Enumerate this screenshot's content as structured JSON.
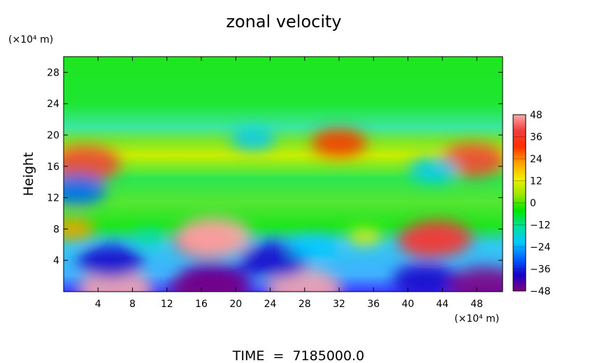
{
  "chart_data": {
    "type": "heatmap",
    "title": "zonal velocity",
    "ylabel": "Height",
    "y_unit_label": "(×10⁴ m)",
    "x_unit_label": "(×10⁴ m)",
    "footer": "TIME  =  7185000.0",
    "xlim": [
      0,
      51
    ],
    "ylim": [
      0,
      30
    ],
    "x_ticks": [
      4,
      8,
      12,
      16,
      20,
      24,
      28,
      32,
      36,
      40,
      44,
      48
    ],
    "y_ticks": [
      4,
      8,
      12,
      16,
      20,
      24,
      28
    ],
    "colorbar": {
      "min": -48,
      "max": 48,
      "ticks": [
        48,
        36,
        24,
        12,
        0,
        -12,
        -24,
        -36,
        -48
      ],
      "colormap": [
        "#800080",
        "#1a00c8",
        "#0060ff",
        "#00c8ff",
        "#00e0a0",
        "#00e600",
        "#9be600",
        "#f0f000",
        "#ffa000",
        "#ff3000",
        "#f03c3c",
        "#ffaaaa"
      ]
    },
    "features": [
      {
        "x": 16.5,
        "y": 6.5,
        "value": 36
      },
      {
        "x": 17.5,
        "y": 7.0,
        "value": 44
      },
      {
        "x": 42.5,
        "y": 6.5,
        "value": 36
      },
      {
        "x": 43.5,
        "y": 6.8,
        "value": 40
      },
      {
        "x": 6.0,
        "y": 0.3,
        "value": 44
      },
      {
        "x": 28.0,
        "y": 0.3,
        "value": 44
      },
      {
        "x": 5.5,
        "y": 3.8,
        "value": -36
      },
      {
        "x": 24.5,
        "y": 4.0,
        "value": -40
      },
      {
        "x": 29.0,
        "y": 5.5,
        "value": -22
      },
      {
        "x": 17.5,
        "y": 1.5,
        "value": -40
      },
      {
        "x": 17.0,
        "y": 0.4,
        "value": -48
      },
      {
        "x": 42.0,
        "y": 1.5,
        "value": -36
      },
      {
        "x": 49.0,
        "y": 0.7,
        "value": -44
      },
      {
        "x": 2.5,
        "y": 16.3,
        "value": 40
      },
      {
        "x": 47.5,
        "y": 16.8,
        "value": 36
      },
      {
        "x": 1.5,
        "y": 13.0,
        "value": -32
      },
      {
        "x": 43.0,
        "y": 15.5,
        "value": -24
      },
      {
        "x": 32.0,
        "y": 19.0,
        "value": 28
      },
      {
        "x": 22.0,
        "y": 19.5,
        "value": -20
      },
      {
        "x": 1.0,
        "y": 8.0,
        "value": 20
      },
      {
        "x": 35.0,
        "y": 7.0,
        "value": 12
      },
      {
        "x": 10.0,
        "y": 7.0,
        "value": -10
      }
    ]
  }
}
